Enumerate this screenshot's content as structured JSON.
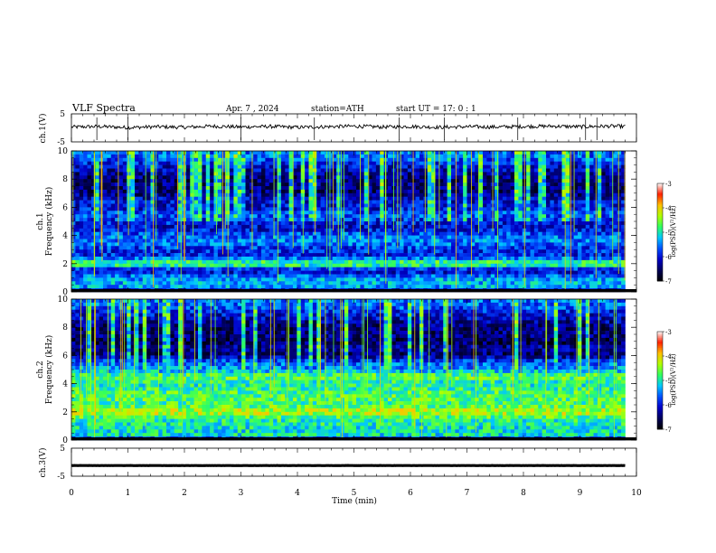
{
  "header": {
    "title": "VLF  Spectra",
    "date": "Apr. 7  , 2024",
    "station": "station=ATH",
    "start": "start  UT  =   17: 0   : 1"
  },
  "colors": {
    "trace": "#000000",
    "colormap": [
      "#000000",
      "#00005a",
      "#0000c8",
      "#0050ff",
      "#00c8ff",
      "#30ff60",
      "#b0ff00",
      "#ffc000",
      "#ff2000",
      "#ffffff"
    ]
  },
  "chart_data": [
    {
      "type": "line",
      "panel": "ch1",
      "ylabel": "ch.1(V)",
      "ylim": [
        -5,
        5
      ],
      "yticks": [
        "5",
        "-5"
      ],
      "xlim": [
        0,
        10
      ],
      "x": [
        0,
        0.5,
        1,
        1.5,
        2,
        2.5,
        3,
        3.5,
        4,
        4.5,
        5,
        5.5,
        6,
        6.5,
        7,
        7.5,
        8,
        8.5,
        9,
        9.5,
        9.8
      ],
      "y": [
        0.3,
        0.5,
        0.1,
        0.4,
        0.2,
        0.6,
        0.3,
        0.5,
        0.2,
        0.4,
        0.6,
        0.3,
        0.5,
        0.2,
        0.4,
        0.3,
        0.5,
        0.6,
        0.4,
        0.6,
        0.5
      ]
    },
    {
      "type": "heatmap",
      "panel": "ch1-spectrogram",
      "ylabel": "Frequency  (kHz)",
      "channel_label": "ch.1",
      "ylim": [
        0,
        10
      ],
      "yticks": [
        "0",
        "2",
        "4",
        "6",
        "8",
        "10"
      ],
      "xlim": [
        0,
        10
      ],
      "colorbar": {
        "label": "log(PSD)(V²/Hz)",
        "range": [
          -7,
          -3
        ],
        "ticks": [
          "-3",
          "-4",
          "-5",
          "-6",
          "-7"
        ]
      },
      "rows_khz": [
        0.0,
        0.2,
        0.5,
        1.0,
        1.5,
        2.0,
        2.5,
        3.0,
        3.5,
        4.0,
        4.5,
        5.0,
        5.5,
        6.0,
        6.5,
        7.0,
        7.5,
        8.0,
        8.5,
        9.0,
        9.5
      ],
      "levels": [
        -7.0,
        -5.5,
        -5.3,
        -5.4,
        -6.2,
        -4.5,
        -5.9,
        -5.9,
        -5.5,
        -5.6,
        -6.1,
        -5.9,
        -5.6,
        -6.1,
        -6.0,
        -6.5,
        -6.4,
        -6.5,
        -6.3,
        -6.0,
        -5.6
      ]
    },
    {
      "type": "heatmap",
      "panel": "ch2-spectrogram",
      "ylabel": "Frequency  (kHz)",
      "channel_label": "ch.2",
      "ylim": [
        0,
        10
      ],
      "yticks": [
        "0",
        "2",
        "4",
        "6",
        "8",
        "10"
      ],
      "xlim": [
        0,
        10
      ],
      "colorbar": {
        "label": "log(PSD)(V²/Hz)",
        "range": [
          -7,
          -3
        ],
        "ticks": [
          "-3",
          "-4",
          "-5",
          "-6",
          "-7"
        ]
      },
      "rows_khz": [
        0.0,
        0.2,
        0.5,
        1.0,
        1.5,
        2.0,
        2.5,
        3.0,
        3.5,
        4.0,
        4.5,
        5.0,
        5.5,
        6.0,
        6.5,
        7.0,
        7.5,
        8.0,
        8.5,
        9.0,
        9.5
      ],
      "levels": [
        -7.0,
        -5.0,
        -5.1,
        -5.0,
        -4.9,
        -4.2,
        -4.8,
        -4.7,
        -4.8,
        -5.0,
        -4.6,
        -5.4,
        -5.6,
        -6.5,
        -6.3,
        -6.6,
        -6.4,
        -6.5,
        -6.2,
        -6.0,
        -5.6
      ]
    },
    {
      "type": "line",
      "panel": "ch3",
      "ylabel": "ch.3(V)",
      "ylim": [
        -5,
        5
      ],
      "yticks": [
        "5",
        "-5"
      ],
      "xlim": [
        0,
        10
      ],
      "x": [
        0,
        9.8
      ],
      "y": [
        -1.2,
        -1.2
      ]
    }
  ],
  "xaxis": {
    "label": "Time  (min)",
    "ticks": [
      "0",
      "1",
      "2",
      "3",
      "4",
      "5",
      "6",
      "7",
      "8",
      "9",
      "10"
    ]
  }
}
